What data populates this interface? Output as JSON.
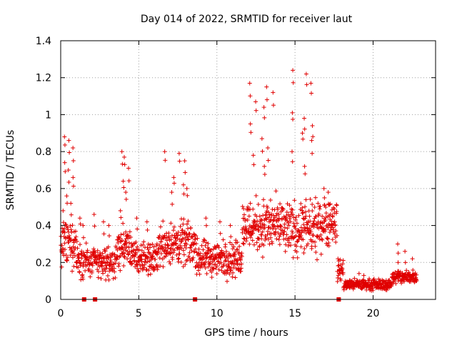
{
  "chart_data": {
    "type": "scatter",
    "title": "Day 014 of 2022, SRMTID for receiver laut",
    "xlabel": "GPS time / hours",
    "ylabel": "SRMTID / TECUs",
    "xlim": [
      0,
      24
    ],
    "ylim": [
      0,
      1.4
    ],
    "xticks": [
      0,
      5,
      10,
      15,
      20
    ],
    "xtick_labels": [
      "0",
      "5",
      "10",
      "15",
      "20"
    ],
    "yticks": [
      0,
      0.2,
      0.4,
      0.6,
      0.8,
      1.0,
      1.2,
      1.4
    ],
    "ytick_labels": [
      "0",
      "0.2",
      "0.4",
      "0.6",
      "0.8",
      "1",
      "1.2",
      "1.4"
    ],
    "grid": true,
    "marker": "plus",
    "color": "#e00000",
    "series": [
      {
        "name": "SRMTID",
        "segments": [
          {
            "x_start": 0.0,
            "x_end": 1.0,
            "base": 0.3,
            "spread": 0.12,
            "peaks": [
              0.88,
              0.86,
              0.82,
              0.74,
              0.7,
              0.66,
              0.56,
              0.52,
              0.48
            ]
          },
          {
            "x_start": 1.0,
            "x_end": 1.7,
            "base": 0.22,
            "spread": 0.1,
            "peaks": [
              0.44,
              0.4
            ]
          },
          {
            "x_start": 1.7,
            "x_end": 3.6,
            "base": 0.2,
            "spread": 0.09,
            "peaks": [
              0.46,
              0.42,
              0.4
            ]
          },
          {
            "x_start": 3.6,
            "x_end": 4.6,
            "base": 0.28,
            "spread": 0.11,
            "peaks": [
              0.8,
              0.77,
              0.71,
              0.64,
              0.58,
              0.48
            ]
          },
          {
            "x_start": 4.6,
            "x_end": 6.2,
            "base": 0.22,
            "spread": 0.09,
            "peaks": [
              0.44,
              0.42
            ]
          },
          {
            "x_start": 6.2,
            "x_end": 8.7,
            "base": 0.3,
            "spread": 0.12,
            "peaks": [
              0.8,
              0.79,
              0.75,
              0.66,
              0.62,
              0.6,
              0.58
            ]
          },
          {
            "x_start": 8.7,
            "x_end": 11.6,
            "base": 0.22,
            "spread": 0.1,
            "peaks": [
              0.44,
              0.42,
              0.4
            ]
          },
          {
            "x_start": 11.6,
            "x_end": 14.3,
            "base": 0.4,
            "spread": 0.15,
            "peaks": [
              1.17,
              1.15,
              1.12,
              1.07,
              1.04,
              0.95,
              0.87,
              0.82,
              0.78,
              0.72
            ]
          },
          {
            "x_start": 14.3,
            "x_end": 16.6,
            "base": 0.38,
            "spread": 0.15,
            "peaks": [
              1.24,
              1.22,
              1.17,
              1.01,
              0.98,
              0.94,
              0.9,
              0.86,
              0.8,
              0.72
            ]
          },
          {
            "x_start": 16.6,
            "x_end": 17.7,
            "base": 0.42,
            "spread": 0.14,
            "peaks": [
              0.6,
              0.58
            ]
          },
          {
            "x_start": 17.7,
            "x_end": 18.1,
            "base": 0.16,
            "spread": 0.06,
            "peaks": []
          },
          {
            "x_start": 18.1,
            "x_end": 21.2,
            "base": 0.08,
            "spread": 0.03,
            "peaks": [
              0.14,
              0.13
            ]
          },
          {
            "x_start": 21.2,
            "x_end": 22.8,
            "base": 0.12,
            "spread": 0.04,
            "peaks": [
              0.3,
              0.26,
              0.22,
              0.2
            ]
          }
        ],
        "gap_markers_x": [
          1.5,
          2.2,
          8.6,
          17.8
        ]
      }
    ]
  }
}
